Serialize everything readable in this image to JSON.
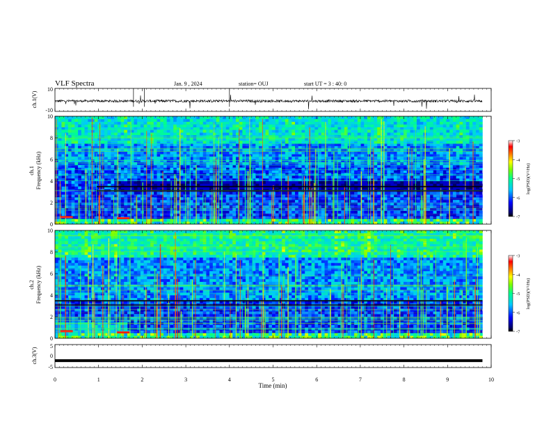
{
  "header": {
    "title": "VLF Spectra",
    "date": "Jan. 9 , 2024",
    "station": "station= OUJ",
    "start": "start UT = 3 : 40: 0"
  },
  "chart_data": [
    {
      "type": "line",
      "id": "ch1v",
      "ylabel": "ch.1(V)",
      "ylim": [
        -10,
        10
      ],
      "yticks": [
        10,
        -10
      ],
      "xlim": [
        0,
        10
      ],
      "series": [
        {
          "values_summary": "noisy trace near -1 V with occasional spikes"
        }
      ]
    },
    {
      "type": "heatmap",
      "id": "ch1spec",
      "ylabel": "ch.1 Frequency (kHz)",
      "ylim": [
        0,
        10
      ],
      "yticks": [
        "0",
        "2",
        "4",
        "6",
        "8",
        "10"
      ],
      "xlim": [
        0,
        10
      ],
      "data_extent_min": 9.8,
      "colorbar": {
        "label": "log(PSD)(V²/Hz)",
        "ticks": [
          "-3",
          "-4",
          "-5",
          "-6",
          "-7"
        ],
        "range": [
          -7,
          -3
        ]
      }
    },
    {
      "type": "heatmap",
      "id": "ch2spec",
      "ylabel": "ch.2 Frequency (kHz)",
      "ylim": [
        0,
        10
      ],
      "yticks": [
        "0",
        "2",
        "4",
        "6",
        "8",
        "10"
      ],
      "xlim": [
        0,
        10
      ],
      "data_extent_min": 9.8,
      "colorbar": {
        "label": "log(PSD)(V²/Hz)",
        "ticks": [
          "-3",
          "-4",
          "-5",
          "-6",
          "-7"
        ],
        "range": [
          -7,
          -3
        ]
      }
    },
    {
      "type": "line",
      "id": "ch3v",
      "ylabel": "ch.3(V)",
      "ylim": [
        -5,
        5
      ],
      "yticks": [
        "5",
        "0",
        "-5"
      ],
      "xlim": [
        0,
        10
      ],
      "series": [
        {
          "values_summary": "thick flat trace near -2 V"
        }
      ]
    }
  ],
  "xaxis": {
    "label": "Time (min)",
    "ticks": [
      "0",
      "1",
      "2",
      "3",
      "4",
      "5",
      "6",
      "7",
      "8",
      "9",
      "10"
    ]
  },
  "panel_labels": {
    "ch1v": "ch.1(V)",
    "ch1_line1": "ch.1",
    "ch1_line2": "Frequency (kHz)",
    "ch2_line1": "ch.2",
    "ch2_line2": "Frequency (kHz)",
    "ch3v": "ch.3(V)"
  },
  "colorbar_label": "log(PSD)(V²/Hz)",
  "colors": {
    "colormap": [
      "#000080",
      "#0000ff",
      "#00c0ff",
      "#00ffb0",
      "#60ff40",
      "#ffff00",
      "#ff8000",
      "#ff0000",
      "#ffffff"
    ]
  }
}
